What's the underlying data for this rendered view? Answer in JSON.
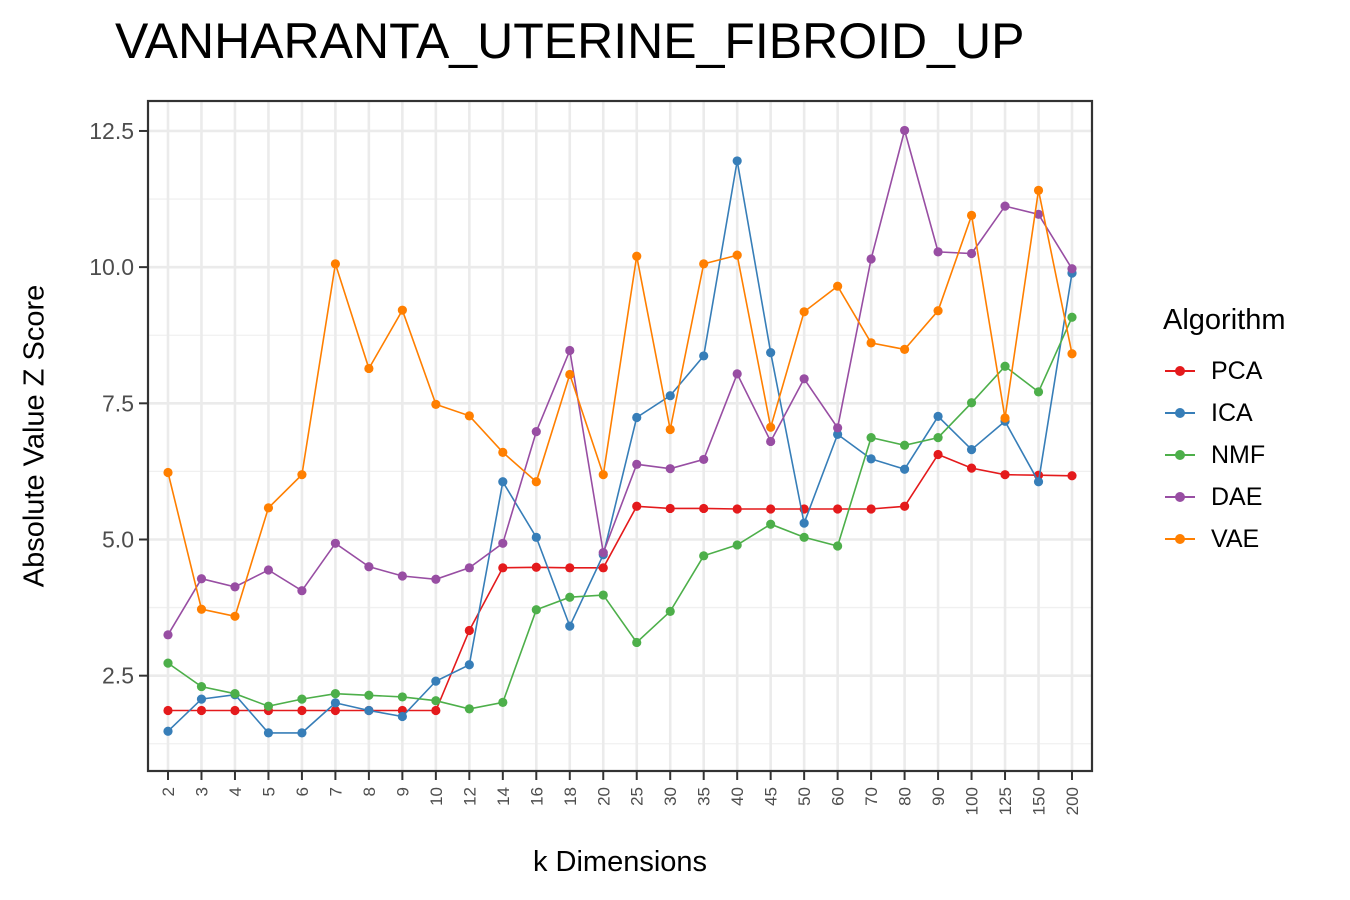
{
  "chart_data": {
    "type": "line",
    "title": "VANHARANTA_UTERINE_FIBROID_UP",
    "xlabel": "k Dimensions",
    "ylabel": "Absolute Value Z Score",
    "categories": [
      "2",
      "3",
      "4",
      "5",
      "6",
      "7",
      "8",
      "9",
      "10",
      "12",
      "14",
      "16",
      "18",
      "20",
      "25",
      "30",
      "35",
      "40",
      "45",
      "50",
      "60",
      "70",
      "80",
      "90",
      "100",
      "125",
      "150",
      "200"
    ],
    "y_ticks": [
      2.5,
      5.0,
      7.5,
      10.0,
      12.5
    ],
    "y_tick_labels": [
      "2.5",
      "5.0",
      "7.5",
      "10.0",
      "12.5"
    ],
    "ylim": [
      0.75,
      13.05
    ],
    "grid": true,
    "legend": {
      "title": "Algorithm",
      "placement": "right"
    },
    "series": [
      {
        "name": "PCA",
        "color": "#E41A1C",
        "values": [
          1.86,
          1.86,
          1.86,
          1.86,
          1.86,
          1.86,
          1.86,
          1.86,
          1.86,
          3.33,
          4.48,
          4.49,
          4.48,
          4.48,
          5.61,
          5.57,
          5.57,
          5.56,
          5.56,
          5.56,
          5.56,
          5.56,
          5.61,
          6.56,
          6.31,
          6.19,
          6.18,
          6.17
        ]
      },
      {
        "name": "ICA",
        "color": "#377EB8",
        "values": [
          1.48,
          2.07,
          2.15,
          1.45,
          1.45,
          2.0,
          1.86,
          1.75,
          2.4,
          2.7,
          6.06,
          5.04,
          3.41,
          4.72,
          7.24,
          7.64,
          8.37,
          11.95,
          8.43,
          5.3,
          6.93,
          6.48,
          6.29,
          7.26,
          6.65,
          7.17,
          6.06,
          9.89
        ]
      },
      {
        "name": "NMF",
        "color": "#4DAF4A",
        "values": [
          2.73,
          2.3,
          2.17,
          1.94,
          2.07,
          2.17,
          2.14,
          2.11,
          2.04,
          1.89,
          2.01,
          3.71,
          3.94,
          3.98,
          3.11,
          3.68,
          4.7,
          4.9,
          5.28,
          5.04,
          4.88,
          6.87,
          6.73,
          6.87,
          7.51,
          8.18,
          7.71,
          9.08
        ]
      },
      {
        "name": "DAE",
        "color": "#984EA3",
        "values": [
          3.25,
          4.28,
          4.13,
          4.44,
          4.06,
          4.93,
          4.5,
          4.33,
          4.27,
          4.48,
          4.93,
          6.98,
          8.47,
          4.76,
          6.38,
          6.3,
          6.47,
          8.04,
          6.8,
          7.95,
          7.05,
          10.15,
          12.51,
          10.28,
          10.25,
          11.12,
          10.97,
          9.97
        ]
      },
      {
        "name": "VAE",
        "color": "#FF7F00",
        "values": [
          6.23,
          3.72,
          3.59,
          5.58,
          6.19,
          10.06,
          8.14,
          9.21,
          7.48,
          7.27,
          6.6,
          6.06,
          8.03,
          6.19,
          10.2,
          7.02,
          10.06,
          10.22,
          7.06,
          9.18,
          9.65,
          8.61,
          8.49,
          9.2,
          10.95,
          7.23,
          11.41,
          8.41
        ]
      }
    ]
  }
}
